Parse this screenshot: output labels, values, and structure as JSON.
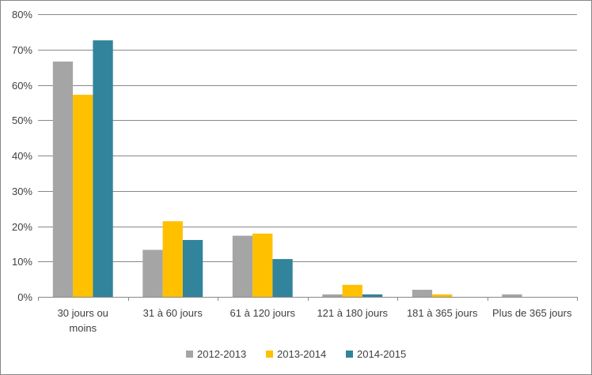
{
  "chart_data": {
    "type": "bar",
    "title": "",
    "xlabel": "",
    "ylabel": "",
    "ylim": [
      0,
      80
    ],
    "y_ticks": [
      "0%",
      "10%",
      "20%",
      "30%",
      "40%",
      "50%",
      "60%",
      "70%",
      "80%"
    ],
    "grid": true,
    "legend_position": "bottom",
    "categories": [
      [
        "30 jours ou",
        "moins"
      ],
      [
        "31 à 60 jours"
      ],
      [
        "61 à 120 jours"
      ],
      [
        "121 à 180 jours"
      ],
      [
        "181 à 365 jours"
      ],
      [
        "Plus de 365 jours"
      ]
    ],
    "series": [
      {
        "name": "2012-2013",
        "color": "#A5A5A5",
        "values": [
          66.6,
          13.3,
          17.3,
          0.7,
          2.0,
          0.7
        ]
      },
      {
        "name": "2013-2014",
        "color": "#FFC000",
        "values": [
          57.2,
          21.4,
          17.9,
          3.4,
          0.7,
          0
        ]
      },
      {
        "name": "2014-2015",
        "color": "#31849B",
        "values": [
          72.6,
          16.1,
          10.7,
          0.7,
          0,
          0
        ]
      }
    ]
  }
}
